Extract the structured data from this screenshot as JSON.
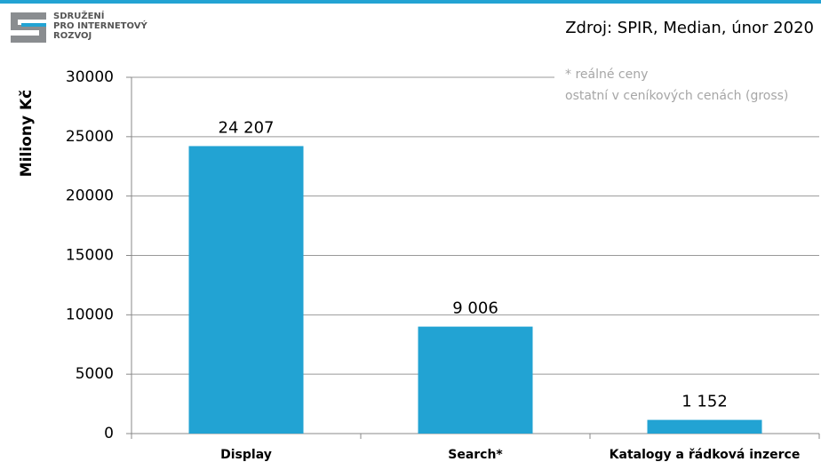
{
  "logo": [
    "SDRUŽENÍ",
    "PRO INTERNETOVÝ",
    "ROZVOJ"
  ],
  "source": "Zdroj: SPIR, Median, únor 2020",
  "notes": [
    "* reálné ceny",
    "ostatní v ceníkových cenách (gross)"
  ],
  "chart_data": {
    "type": "bar",
    "y_label": "Miliony Kč",
    "categories": [
      "Display",
      "Search*",
      "Katalogy a řádková inzerce"
    ],
    "values": [
      24207,
      9006,
      1152
    ],
    "value_labels": [
      "24 207",
      "9 006",
      "1 152"
    ],
    "color": "#22a3d3",
    "ylim": [
      0,
      30000
    ],
    "yticks": [
      0,
      5000,
      10000,
      15000,
      20000,
      25000,
      30000
    ],
    "grid": true
  }
}
